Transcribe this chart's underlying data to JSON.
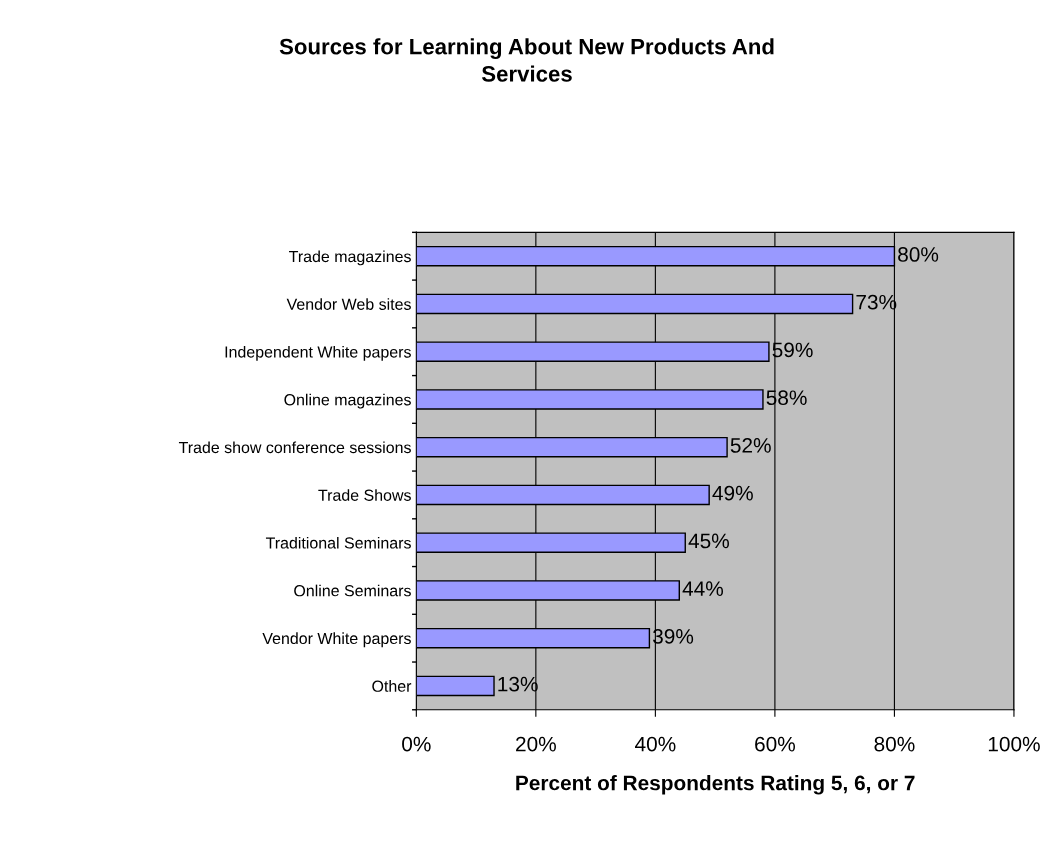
{
  "chart_data": {
    "type": "bar",
    "orientation": "horizontal",
    "title": "Sources for Learning About New Products And\nServices",
    "xlabel": "Percent of Respondents Rating 5, 6, or 7",
    "categories": [
      "Trade magazines",
      "Vendor Web sites",
      "Independent White papers",
      "Online magazines",
      "Trade show conference sessions",
      "Trade Shows",
      "Traditional Seminars",
      "Online Seminars",
      "Vendor White papers",
      "Other"
    ],
    "values": [
      80,
      73,
      59,
      58,
      52,
      49,
      45,
      44,
      39,
      13
    ],
    "value_labels": [
      "80%",
      "73%",
      "59%",
      "58%",
      "52%",
      "49%",
      "45%",
      "44%",
      "39%",
      "13%"
    ],
    "color": "#9999ff",
    "xlim": [
      0,
      100
    ],
    "xticks": [
      {
        "value": 0,
        "label": "0%"
      },
      {
        "value": 20,
        "label": "20%"
      },
      {
        "value": 40,
        "label": "40%"
      },
      {
        "value": 60,
        "label": "60%"
      },
      {
        "value": 80,
        "label": "80%"
      },
      {
        "value": 100,
        "label": "100%"
      }
    ],
    "grid": "x",
    "legend": false
  }
}
